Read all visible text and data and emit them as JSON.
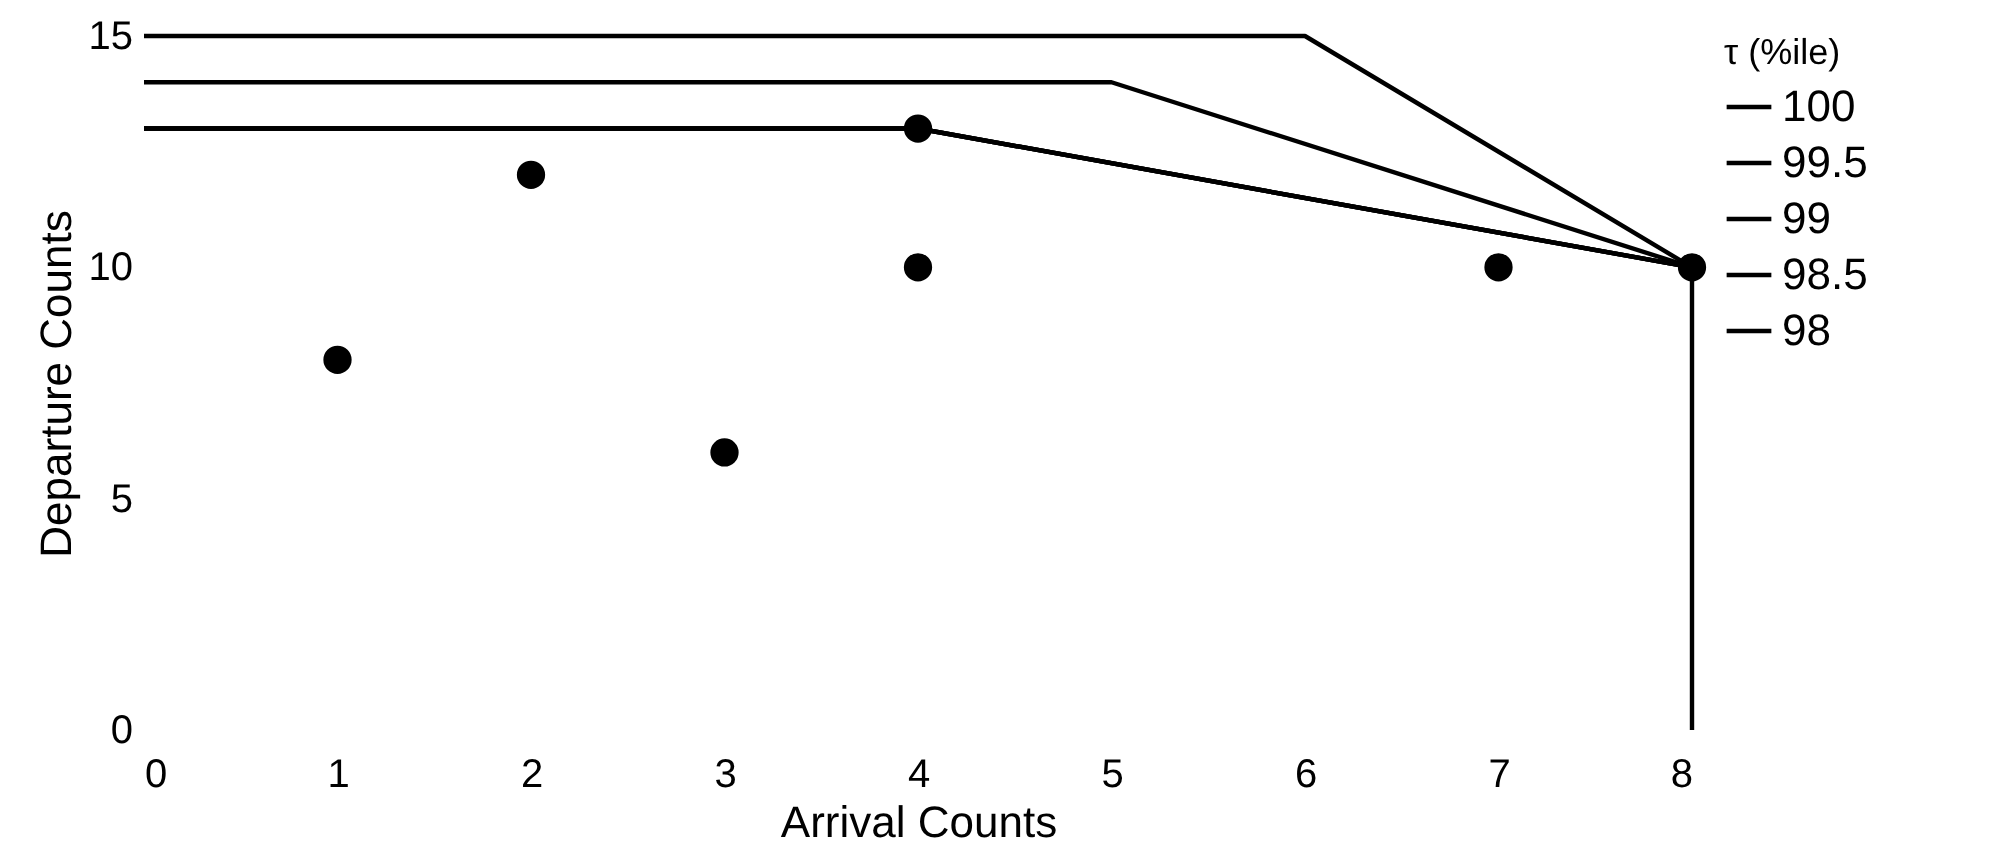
{
  "chart_data": {
    "type": "line",
    "xlabel": "Arrival Counts",
    "ylabel": "Departure Counts",
    "legend_title": "τ (%ile)",
    "xlim": [
      0,
      8
    ],
    "ylim": [
      0,
      15
    ],
    "xticks": [
      0,
      1,
      2,
      3,
      4,
      5,
      6,
      7,
      8
    ],
    "yticks": [
      0,
      5,
      10,
      15
    ],
    "grid": false,
    "legend": "top right",
    "series": [
      {
        "type": "scatter",
        "color": "#000000",
        "x": [
          1,
          2,
          3,
          4,
          4,
          7,
          8
        ],
        "values": [
          8,
          12,
          6,
          10,
          13,
          10,
          10
        ]
      },
      {
        "name": "100",
        "color": "#000000",
        "x": [
          0,
          6,
          8,
          8
        ],
        "values": [
          15,
          15,
          10,
          0
        ]
      },
      {
        "name": "99.5",
        "color": "#000000",
        "x": [
          0,
          5,
          8
        ],
        "values": [
          14,
          14,
          10
        ]
      },
      {
        "name": "99",
        "color": "#000000",
        "x": [
          0,
          4,
          8
        ],
        "values": [
          13,
          13,
          10
        ]
      },
      {
        "name": "98.5",
        "color": "#000000",
        "x": [
          0,
          4,
          8
        ],
        "values": [
          13,
          13,
          10
        ]
      },
      {
        "name": "98",
        "color": "#000000",
        "x": [
          0,
          4,
          8
        ],
        "values": [
          13,
          13,
          10
        ]
      }
    ]
  }
}
